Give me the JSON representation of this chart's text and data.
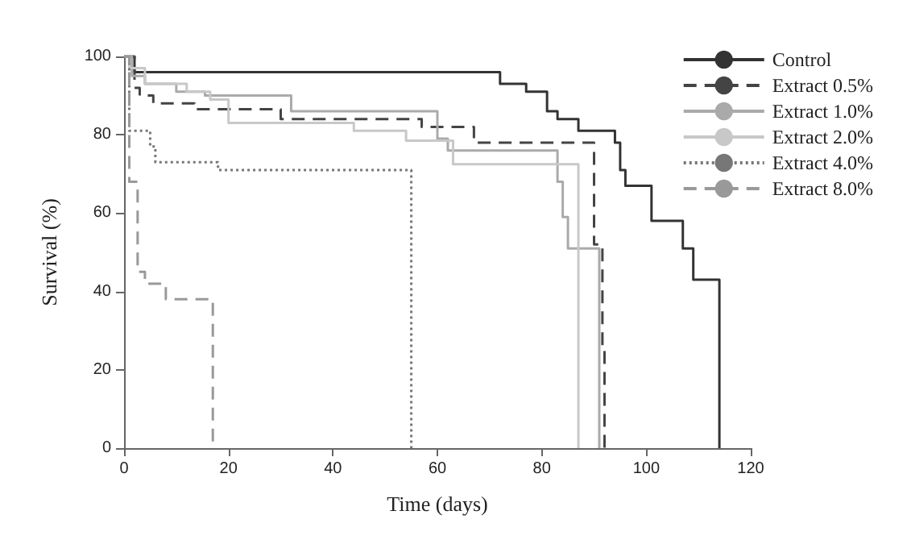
{
  "chart_data": {
    "type": "step",
    "xlabel": "Time (days)",
    "ylabel": "Survival (%)",
    "xlim": [
      0,
      120
    ],
    "xticks": [
      0,
      20,
      40,
      60,
      80,
      100,
      120
    ],
    "ylim": [
      0,
      100
    ],
    "yticks": [
      0,
      20,
      40,
      60,
      80,
      100
    ],
    "grid": false,
    "legend": "top right",
    "marker": "none",
    "series": [
      {
        "name": "Control",
        "color": "#333333",
        "line_style": "solid",
        "x": [
          0,
          2,
          72,
          77,
          81,
          83,
          87,
          94,
          95,
          96,
          101,
          107,
          109,
          114
        ],
        "values": [
          100,
          96,
          93,
          91,
          86,
          84,
          81,
          78,
          71,
          67,
          58,
          51,
          43,
          0
        ]
      },
      {
        "name": "Extract 0.5%",
        "color": "#444444",
        "line_style": "dashed",
        "x": [
          0,
          2,
          3,
          5.6,
          13.5,
          30,
          57,
          67,
          90,
          91.6,
          92
        ],
        "values": [
          100,
          92,
          90,
          88,
          86.5,
          84,
          82,
          78,
          52,
          26,
          0
        ]
      },
      {
        "name": "Extract 1.0%",
        "color": "#aaaaaa",
        "line_style": "solid",
        "x": [
          0,
          1.5,
          4,
          10,
          15.5,
          32,
          60,
          62,
          83,
          84,
          85,
          91
        ],
        "values": [
          100,
          95,
          93,
          91,
          90,
          86,
          79,
          76,
          68,
          59,
          51,
          0
        ]
      },
      {
        "name": "Extract 2.0%",
        "color": "#c8c8c8",
        "line_style": "solid",
        "x": [
          0,
          1,
          4,
          12,
          16.5,
          20,
          44,
          54,
          63,
          87
        ],
        "values": [
          100,
          97,
          93,
          91,
          89,
          83,
          81,
          78.5,
          72.5,
          0
        ]
      },
      {
        "name": "Extract 4.0%",
        "color": "#777777",
        "line_style": "dotted",
        "x": [
          0,
          1,
          5,
          6,
          18,
          55
        ],
        "values": [
          100,
          81,
          77,
          73,
          71,
          0
        ]
      },
      {
        "name": "Extract 8.0%",
        "color": "#999999",
        "line_style": "dashed",
        "x": [
          0,
          1,
          2.6,
          4,
          8,
          17
        ],
        "values": [
          100,
          68,
          45,
          42,
          38,
          0
        ]
      }
    ]
  }
}
